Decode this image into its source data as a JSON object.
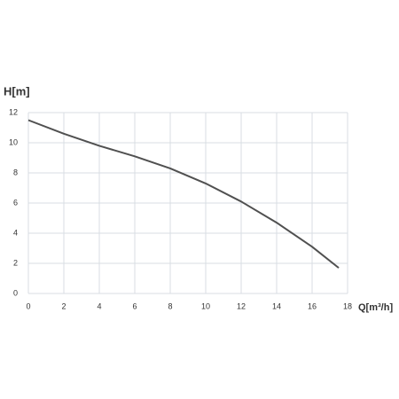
{
  "chart_data": {
    "type": "line",
    "ylabel": "H[m]",
    "xlabel": "Q[m³/h]",
    "x": [
      0,
      2,
      4,
      6,
      8,
      10,
      12,
      14,
      16,
      17.5
    ],
    "series": [
      {
        "color": "#505050",
        "values": [
          11.5,
          10.6,
          9.8,
          9.1,
          8.3,
          7.3,
          6.1,
          4.7,
          3.1,
          1.7
        ]
      }
    ],
    "xlim": [
      0,
      18
    ],
    "xticks": [
      0,
      2,
      4,
      6,
      8,
      10,
      12,
      14,
      16,
      18
    ],
    "ylim": [
      0,
      12
    ],
    "yticks": [
      0,
      2,
      4,
      6,
      8,
      10,
      12
    ],
    "grid": true
  }
}
